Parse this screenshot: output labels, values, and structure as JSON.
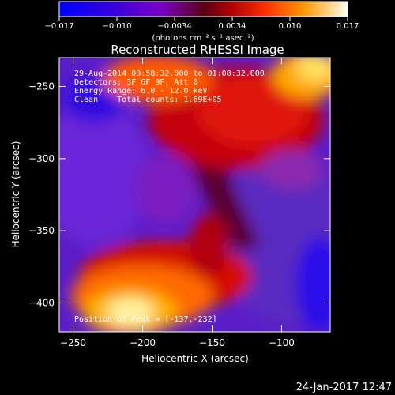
{
  "colorbar": {
    "tick_labels": [
      "−0.017",
      "−0.010",
      "−0.0034",
      "0.0034",
      "0.010",
      "0.017"
    ],
    "unit_label": "(photons cm⁻² s⁻¹ asec⁻²)",
    "range": [
      -0.017,
      0.017
    ]
  },
  "title": "Reconstructed RHESSI Image",
  "annotations": {
    "line1": "29-Aug-2014 00:58:32.000 to 01:08:32.000",
    "line2": "Detectors: 3F 6F 9F, Att 0",
    "line3": "Energy Range: 6.0 - 12.0 keV",
    "line4": "Clean    Total counts: 1.69E+05",
    "peak": "Position of Peak = [-137,-232]"
  },
  "x_axis": {
    "label": "Heliocentric X (arcsec)",
    "range": [
      -260,
      -65
    ],
    "ticks": [
      {
        "value": -250,
        "label": "−250"
      },
      {
        "value": -200,
        "label": "−200"
      },
      {
        "value": -150,
        "label": "−150"
      },
      {
        "value": -100,
        "label": "−100"
      }
    ]
  },
  "y_axis": {
    "label": "Heliocentric Y (arcsec)",
    "range": [
      -420,
      -230
    ],
    "ticks": [
      {
        "value": -250,
        "label": "−250"
      },
      {
        "value": -300,
        "label": "−300"
      },
      {
        "value": -350,
        "label": "−350"
      },
      {
        "value": -400,
        "label": "−400"
      }
    ]
  },
  "footer": {
    "timestamp": "24-Jan-2017 12:47"
  }
}
